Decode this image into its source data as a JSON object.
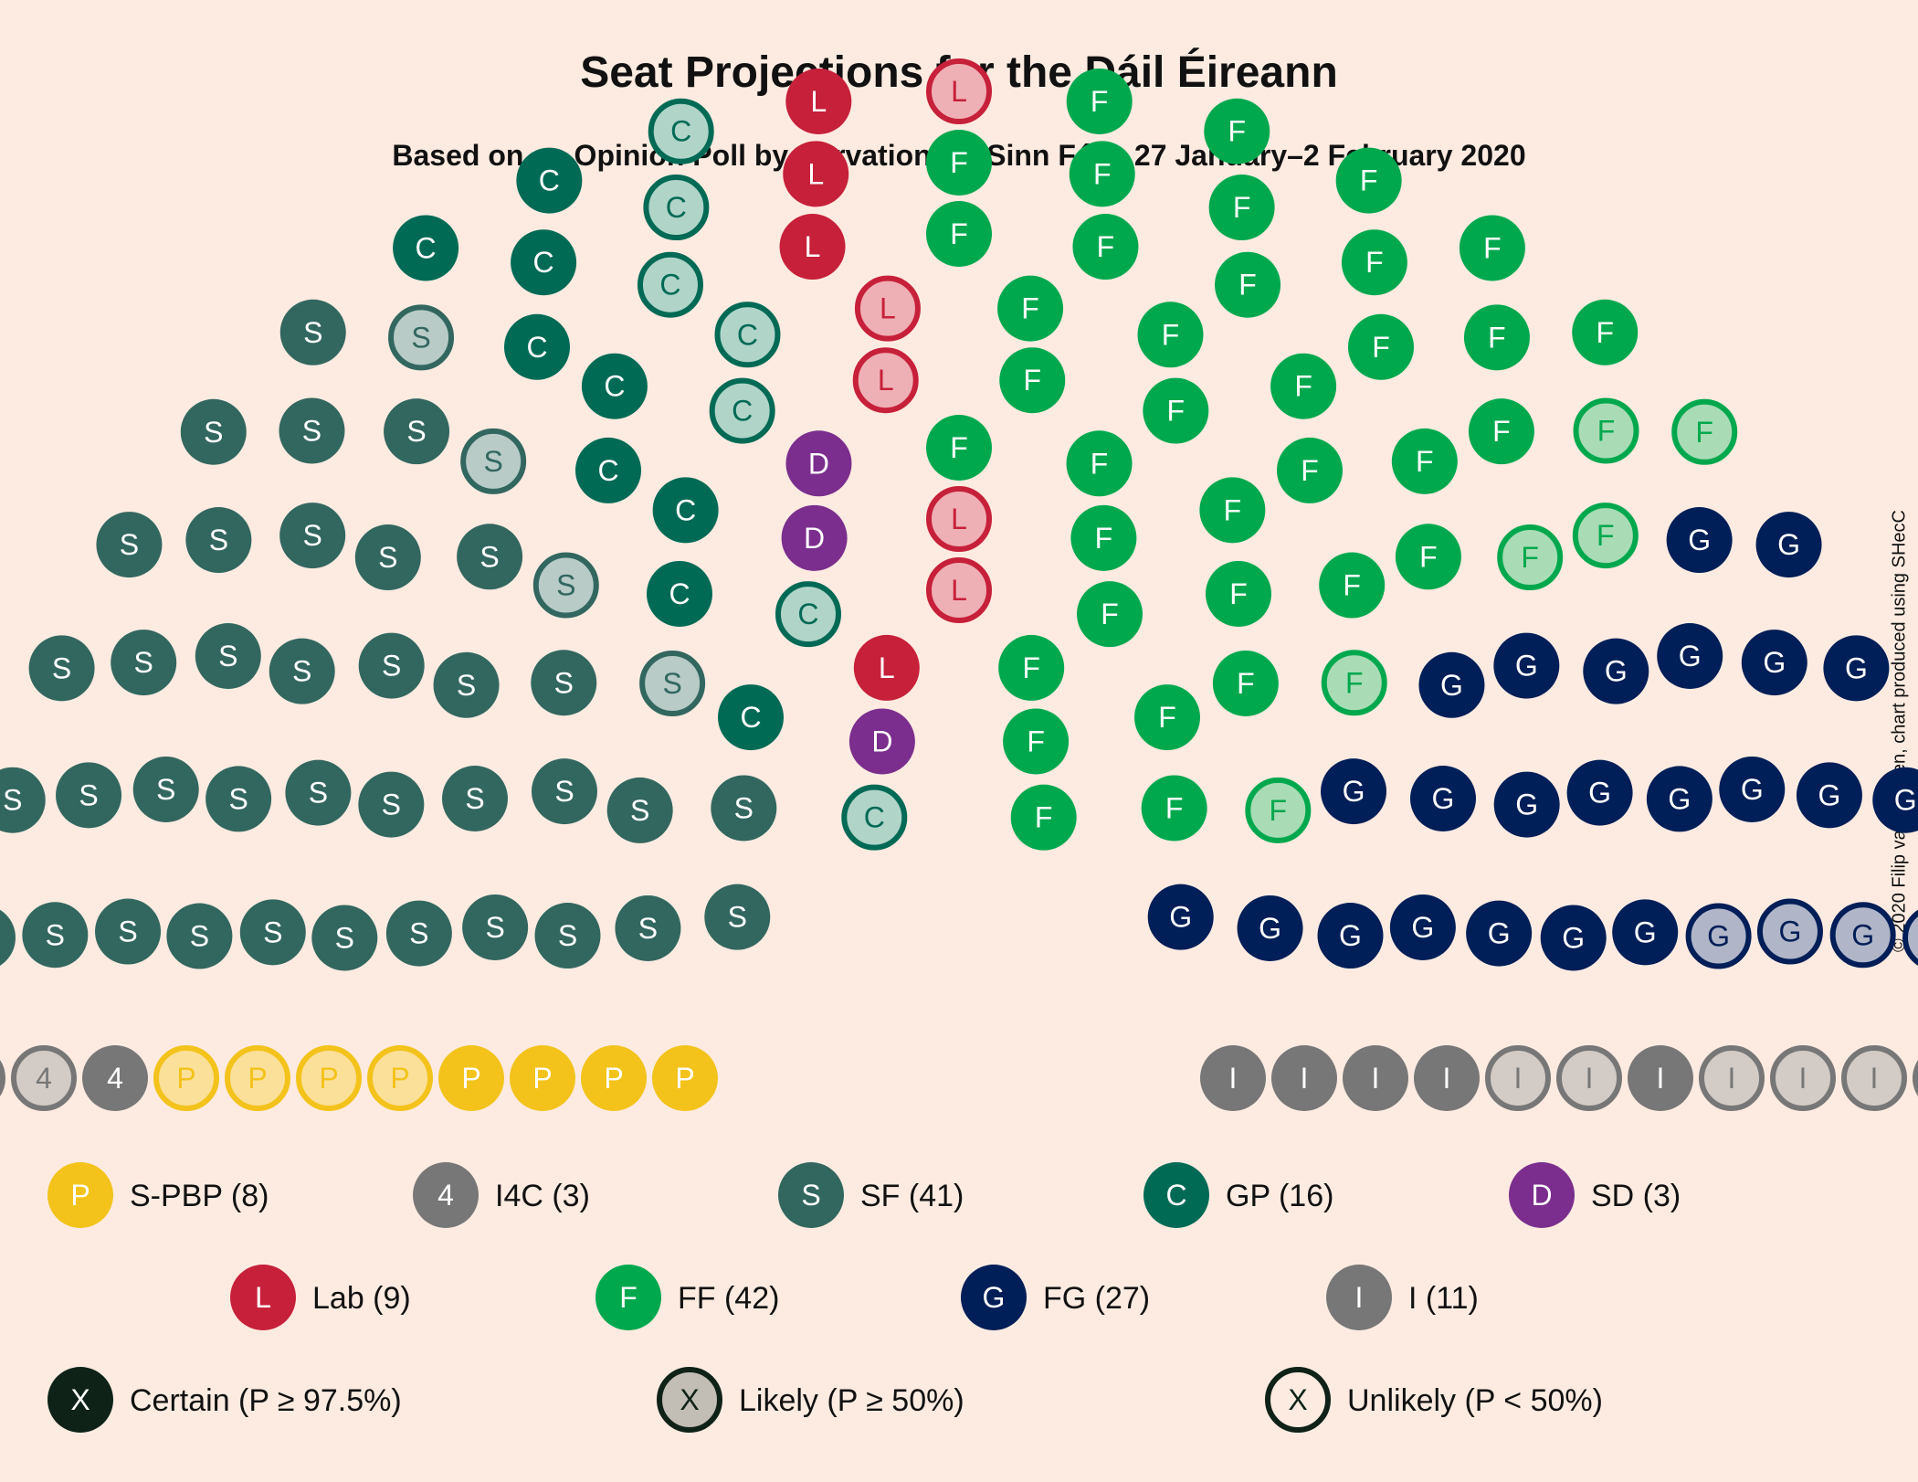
{
  "title": "Seat Projections for the Dáil Éireann",
  "subtitle": "Based on an Opinion Poll by Survation for Sinn Féin, 27 January–2 February 2020",
  "credit": "© 2020 Filip van Laenen, chart produced using SHecC",
  "chart_data": {
    "type": "parliament",
    "total_seats": 160,
    "parties": [
      {
        "abbr": "P",
        "name": "S-PBP",
        "seats": 8,
        "certain": 4,
        "likely": 0,
        "unlikely": 4,
        "color": "#f3c31c",
        "light": "#fbe09a"
      },
      {
        "abbr": "4",
        "name": "I4C",
        "seats": 3,
        "certain": 1,
        "likely": 2,
        "unlikely": 0,
        "color": "#777777",
        "light": "#d3cbc5"
      },
      {
        "abbr": "S",
        "name": "SF",
        "seats": 41,
        "certain": 37,
        "likely": 4,
        "unlikely": 0,
        "color": "#326760",
        "light": "#b8cbc7"
      },
      {
        "abbr": "C",
        "name": "GP",
        "seats": 16,
        "certain": 9,
        "likely": 0,
        "unlikely": 7,
        "color": "#006a55",
        "light": "#b0d4c8"
      },
      {
        "abbr": "D",
        "name": "SD",
        "seats": 3,
        "certain": 3,
        "likely": 0,
        "unlikely": 0,
        "color": "#7b2e8e",
        "light": "#d6b9df"
      },
      {
        "abbr": "L",
        "name": "Lab",
        "seats": 9,
        "certain": 4,
        "likely": 0,
        "unlikely": 5,
        "color": "#c7203a",
        "light": "#eeb0b5"
      },
      {
        "abbr": "F",
        "name": "FF",
        "seats": 42,
        "certain": 36,
        "likely": 0,
        "unlikely": 6,
        "color": "#00a84d",
        "light": "#a9dcb5"
      },
      {
        "abbr": "G",
        "name": "FG",
        "seats": 27,
        "certain": 23,
        "likely": 4,
        "unlikely": 0,
        "color": "#001e57",
        "light": "#b0b6c8"
      },
      {
        "abbr": "I",
        "name": "I",
        "seats": 11,
        "certain": 6,
        "likely": 5,
        "unlikely": 0,
        "color": "#777777",
        "light": "#d3cbc5"
      }
    ],
    "legend_status": [
      {
        "symbol": "X",
        "label": "Certain (P ≥ 97.5%)",
        "style": "certain"
      },
      {
        "symbol": "X",
        "label": "Likely (P ≥ 50%)",
        "style": "likely"
      },
      {
        "symbol": "X",
        "label": "Unlikely (P < 50%)",
        "style": "unlikely"
      }
    ]
  }
}
